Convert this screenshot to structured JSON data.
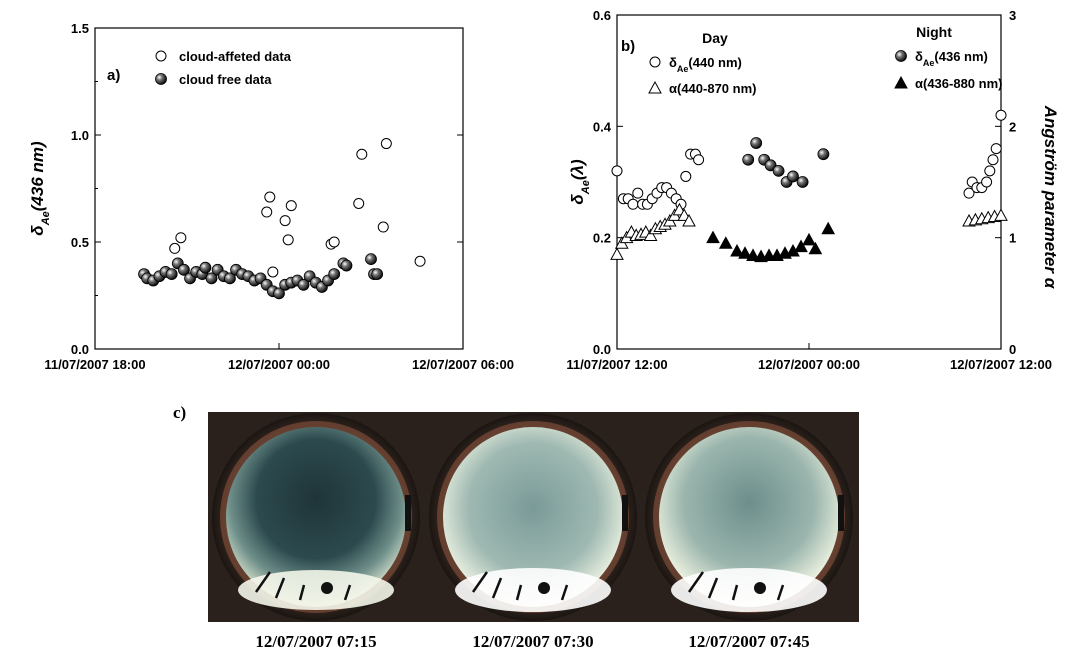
{
  "chart_data": [
    {
      "panel": "a)",
      "type": "scatter",
      "ylabel": "δ_Ae(436 nm)",
      "ylim": [
        0.0,
        1.5
      ],
      "y_ticks": [
        "0.0",
        "0.5",
        "1.0",
        "1.5"
      ],
      "x_ticks": [
        "11/07/2007 18:00",
        "12/07/2007 00:00",
        "12/07/2007 06:00"
      ],
      "xlim_hours": [
        -6,
        6
      ],
      "legend": {
        "position": "top-left",
        "entries": [
          "cloud-affeted data",
          "cloud free data"
        ]
      },
      "series": [
        {
          "name": "cloud-affeted data",
          "marker": "open-circle",
          "points": [
            [
              -3.4,
              0.47
            ],
            [
              -3.2,
              0.52
            ],
            [
              -0.4,
              0.64
            ],
            [
              -0.3,
              0.71
            ],
            [
              -0.2,
              0.36
            ],
            [
              0.2,
              0.6
            ],
            [
              0.3,
              0.51
            ],
            [
              0.4,
              0.67
            ],
            [
              1.7,
              0.49
            ],
            [
              1.8,
              0.5
            ],
            [
              2.6,
              0.68
            ],
            [
              2.7,
              0.91
            ],
            [
              3.4,
              0.57
            ],
            [
              3.5,
              0.96
            ],
            [
              4.6,
              0.41
            ]
          ]
        },
        {
          "name": "cloud free data",
          "marker": "filled-ball",
          "points": [
            [
              -4.4,
              0.35
            ],
            [
              -4.3,
              0.33
            ],
            [
              -4.1,
              0.32
            ],
            [
              -3.9,
              0.34
            ],
            [
              -3.7,
              0.36
            ],
            [
              -3.5,
              0.35
            ],
            [
              -3.3,
              0.4
            ],
            [
              -3.1,
              0.37
            ],
            [
              -2.9,
              0.33
            ],
            [
              -2.7,
              0.36
            ],
            [
              -2.5,
              0.35
            ],
            [
              -2.4,
              0.38
            ],
            [
              -2.2,
              0.33
            ],
            [
              -2.0,
              0.37
            ],
            [
              -1.8,
              0.34
            ],
            [
              -1.6,
              0.33
            ],
            [
              -1.4,
              0.37
            ],
            [
              -1.2,
              0.35
            ],
            [
              -1.0,
              0.34
            ],
            [
              -0.8,
              0.32
            ],
            [
              -0.6,
              0.33
            ],
            [
              -0.4,
              0.3
            ],
            [
              -0.2,
              0.27
            ],
            [
              0.0,
              0.26
            ],
            [
              0.2,
              0.3
            ],
            [
              0.4,
              0.31
            ],
            [
              0.6,
              0.32
            ],
            [
              0.8,
              0.3
            ],
            [
              1.0,
              0.34
            ],
            [
              1.2,
              0.31
            ],
            [
              1.4,
              0.29
            ],
            [
              1.6,
              0.32
            ],
            [
              1.8,
              0.35
            ],
            [
              2.1,
              0.4
            ],
            [
              2.2,
              0.39
            ],
            [
              3.0,
              0.42
            ],
            [
              3.1,
              0.35
            ],
            [
              3.2,
              0.35
            ]
          ]
        }
      ]
    },
    {
      "panel": "b)",
      "type": "scatter",
      "ylabel": "δ_Ae(λ)",
      "y2label": "Angström parameter α",
      "ylim": [
        0.0,
        0.6
      ],
      "y2lim": [
        0,
        3
      ],
      "y_ticks": [
        "0.0",
        "0.2",
        "0.4",
        "0.6"
      ],
      "y2_ticks": [
        "0",
        "1",
        "2",
        "3"
      ],
      "x_ticks": [
        "11/07/2007 12:00",
        "12/07/2007 00:00",
        "12/07/2007 12:00"
      ],
      "xlim_hours": [
        -12,
        12
      ],
      "headers": [
        "Day",
        "Night"
      ],
      "legend": {
        "position": "top",
        "entries": [
          "δ_Ae(440 nm)",
          "α(440-870 nm)",
          "δ_Ae(436 nm)",
          "α(436-880 nm)"
        ]
      },
      "series": [
        {
          "name": "δ_Ae(440 nm)",
          "axis": "left",
          "marker": "open-circle",
          "points": [
            [
              -12.0,
              0.32
            ],
            [
              -11.6,
              0.27
            ],
            [
              -11.3,
              0.27
            ],
            [
              -11.0,
              0.26
            ],
            [
              -10.7,
              0.28
            ],
            [
              -10.4,
              0.26
            ],
            [
              -10.1,
              0.26
            ],
            [
              -9.8,
              0.27
            ],
            [
              -9.5,
              0.28
            ],
            [
              -9.2,
              0.29
            ],
            [
              -8.9,
              0.29
            ],
            [
              -8.6,
              0.28
            ],
            [
              -8.3,
              0.27
            ],
            [
              -8.0,
              0.26
            ],
            [
              -7.7,
              0.31
            ],
            [
              -7.4,
              0.35
            ],
            [
              -7.1,
              0.35
            ],
            [
              -6.9,
              0.34
            ],
            [
              10.0,
              0.28
            ],
            [
              10.2,
              0.3
            ],
            [
              10.5,
              0.29
            ],
            [
              10.8,
              0.29
            ],
            [
              11.1,
              0.3
            ],
            [
              11.3,
              0.32
            ],
            [
              11.5,
              0.34
            ],
            [
              11.7,
              0.36
            ],
            [
              12.0,
              0.42
            ]
          ]
        },
        {
          "name": "α(440-870 nm)",
          "axis": "right",
          "marker": "open-triangle",
          "points": [
            [
              -12.0,
              0.85
            ],
            [
              -11.7,
              0.95
            ],
            [
              -11.4,
              1.0
            ],
            [
              -11.1,
              1.05
            ],
            [
              -10.8,
              1.02
            ],
            [
              -10.5,
              1.03
            ],
            [
              -10.2,
              1.05
            ],
            [
              -9.9,
              1.02
            ],
            [
              -9.6,
              1.08
            ],
            [
              -9.3,
              1.1
            ],
            [
              -9.0,
              1.12
            ],
            [
              -8.7,
              1.15
            ],
            [
              -8.4,
              1.2
            ],
            [
              -8.1,
              1.25
            ],
            [
              -7.8,
              1.2
            ],
            [
              -7.5,
              1.15
            ],
            [
              10.0,
              1.15
            ],
            [
              10.4,
              1.16
            ],
            [
              10.8,
              1.17
            ],
            [
              11.2,
              1.18
            ],
            [
              11.6,
              1.19
            ],
            [
              12.0,
              1.2
            ]
          ]
        },
        {
          "name": "δ_Ae(436 nm)",
          "axis": "left",
          "marker": "filled-ball",
          "points": [
            [
              -3.8,
              0.34
            ],
            [
              -3.3,
              0.37
            ],
            [
              -2.8,
              0.34
            ],
            [
              -2.4,
              0.33
            ],
            [
              -1.9,
              0.32
            ],
            [
              -1.4,
              0.3
            ],
            [
              -1.0,
              0.31
            ],
            [
              -0.4,
              0.3
            ],
            [
              0.9,
              0.35
            ]
          ]
        },
        {
          "name": "α(436-880 nm)",
          "axis": "right",
          "marker": "filled-triangle",
          "points": [
            [
              -6.0,
              1.0
            ],
            [
              -5.2,
              0.95
            ],
            [
              -4.5,
              0.88
            ],
            [
              -4.0,
              0.86
            ],
            [
              -3.5,
              0.84
            ],
            [
              -3.0,
              0.83
            ],
            [
              -2.5,
              0.84
            ],
            [
              -2.0,
              0.84
            ],
            [
              -1.5,
              0.86
            ],
            [
              -1.0,
              0.88
            ],
            [
              -0.5,
              0.92
            ],
            [
              0.0,
              0.98
            ],
            [
              0.4,
              0.9
            ],
            [
              1.2,
              1.08
            ]
          ]
        }
      ]
    }
  ],
  "photos": {
    "panel": "c)",
    "captions": [
      "12/07/2007 07:15",
      "12/07/2007 07:30",
      "12/07/2007 07:45"
    ]
  }
}
